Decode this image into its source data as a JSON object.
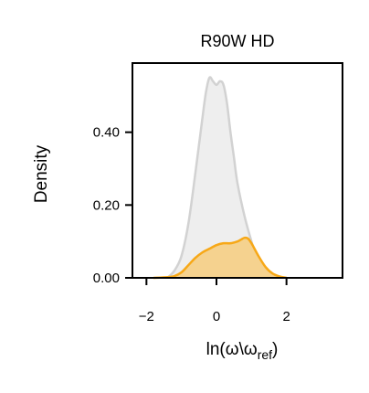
{
  "chart_data": {
    "type": "area",
    "title": "R90W HD",
    "xlabel": {
      "main": "ln(ω\\ω",
      "sub": "ref",
      "close": ")"
    },
    "ylabel": "Density",
    "xlim": [
      -2.4,
      3.6
    ],
    "ylim": [
      0,
      0.59
    ],
    "xticks": [
      -2,
      0,
      2
    ],
    "xtick_labels": [
      "−2",
      "0",
      "2"
    ],
    "yticks": [
      0,
      0.2,
      0.4
    ],
    "ytick_labels": [
      "0.00",
      "0.20",
      "0.40"
    ],
    "grid": false,
    "legend": "none",
    "series": [
      {
        "key": "background",
        "fill": "#eeeeee",
        "stroke": "#d2d2d2",
        "x": [
          -1.4,
          -1.2,
          -1.0,
          -0.8,
          -0.6,
          -0.4,
          -0.3,
          -0.2,
          -0.1,
          0.0,
          0.1,
          0.2,
          0.3,
          0.4,
          0.5,
          0.6,
          0.8,
          1.0,
          1.2,
          1.4,
          1.6
        ],
        "y": [
          0.0,
          0.02,
          0.06,
          0.15,
          0.29,
          0.44,
          0.51,
          0.55,
          0.54,
          0.53,
          0.54,
          0.53,
          0.48,
          0.4,
          0.33,
          0.26,
          0.17,
          0.1,
          0.04,
          0.01,
          0.0
        ]
      },
      {
        "key": "highlight",
        "fill": "#f5d28f",
        "stroke": "#f7a817",
        "x": [
          -1.8,
          -1.4,
          -1.2,
          -1.0,
          -0.8,
          -0.6,
          -0.4,
          -0.2,
          0.0,
          0.2,
          0.4,
          0.6,
          0.7,
          0.8,
          0.9,
          1.0,
          1.2,
          1.4,
          1.6,
          1.8,
          2.0
        ],
        "y": [
          0.0,
          0.002,
          0.005,
          0.015,
          0.035,
          0.055,
          0.07,
          0.08,
          0.09,
          0.095,
          0.095,
          0.1,
          0.105,
          0.11,
          0.108,
          0.095,
          0.06,
          0.03,
          0.012,
          0.004,
          0.0
        ]
      }
    ]
  }
}
